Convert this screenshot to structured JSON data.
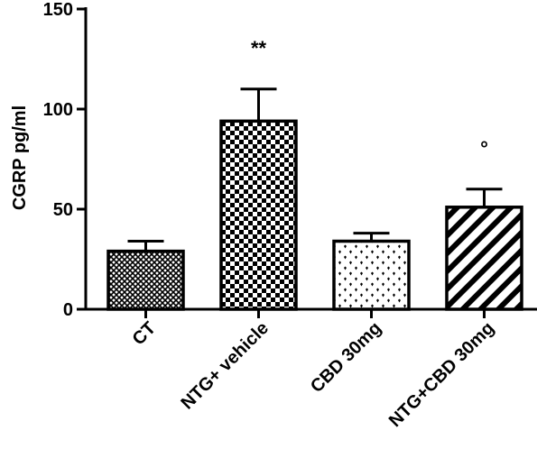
{
  "chart_data": {
    "type": "bar",
    "categories": [
      "CT",
      "NTG+ vehicle",
      "CBD 30mg",
      "NTG+CBD 30mg"
    ],
    "values": [
      29,
      94,
      34,
      51
    ],
    "errors": [
      5,
      16,
      4,
      9
    ],
    "annotations": [
      "",
      "**",
      "",
      "°"
    ],
    "patterns": [
      "diamond-mesh",
      "checker",
      "hearts",
      "diagonal-stripes"
    ],
    "title": "",
    "xlabel": "",
    "ylabel": "CGRP  pg/ml",
    "ylim": [
      0,
      150
    ],
    "yticks": [
      0,
      50,
      100,
      150
    ],
    "grid": false,
    "legend": "none",
    "bar_outline_color": "#000000",
    "background_color": "#ffffff"
  }
}
